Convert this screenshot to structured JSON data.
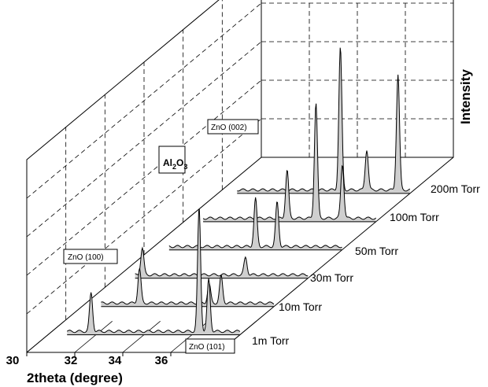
{
  "chart_data": {
    "type": "line",
    "style": "3d-waterfall",
    "x_axis": {
      "label": "2theta (degree)",
      "ticks": [
        30,
        32,
        34,
        36
      ],
      "range": [
        30,
        38
      ]
    },
    "z_axis_label": "Intensity",
    "series": [
      {
        "name": "1m Torr",
        "peaks": [
          {
            "x": 31.8,
            "h": 0.2
          },
          {
            "x": 36.3,
            "h": 0.64
          },
          {
            "x": 36.7,
            "h": 0.27
          }
        ]
      },
      {
        "name": "10m Torr",
        "peaks": [
          {
            "x": 32.4,
            "h": 0.18
          },
          {
            "x": 35.3,
            "h": 0.1
          },
          {
            "x": 35.8,
            "h": 0.14
          }
        ]
      },
      {
        "name": "30m Torr",
        "peaks": [
          {
            "x": 31.1,
            "h": 0.14
          },
          {
            "x": 35.4,
            "h": 0.09
          }
        ]
      },
      {
        "name": "50m Torr",
        "peaks": [
          {
            "x": 34.4,
            "h": 0.25
          },
          {
            "x": 35.3,
            "h": 0.23
          }
        ]
      },
      {
        "name": "100m Torr",
        "peaks": [
          {
            "x": 34.3,
            "h": 0.25
          },
          {
            "x": 35.5,
            "h": 0.6
          },
          {
            "x": 36.6,
            "h": 0.28
          }
        ]
      },
      {
        "name": "200m Torr",
        "peaks": [
          {
            "x": 35.1,
            "h": 0.74
          },
          {
            "x": 36.2,
            "h": 0.21
          },
          {
            "x": 37.5,
            "h": 0.6
          }
        ]
      }
    ],
    "annotations": [
      {
        "text": "ZnO (100)"
      },
      {
        "text": "Al2O3"
      },
      {
        "text": "ZnO (002)"
      },
      {
        "text": "ZnO (101)"
      }
    ],
    "grid": true
  }
}
